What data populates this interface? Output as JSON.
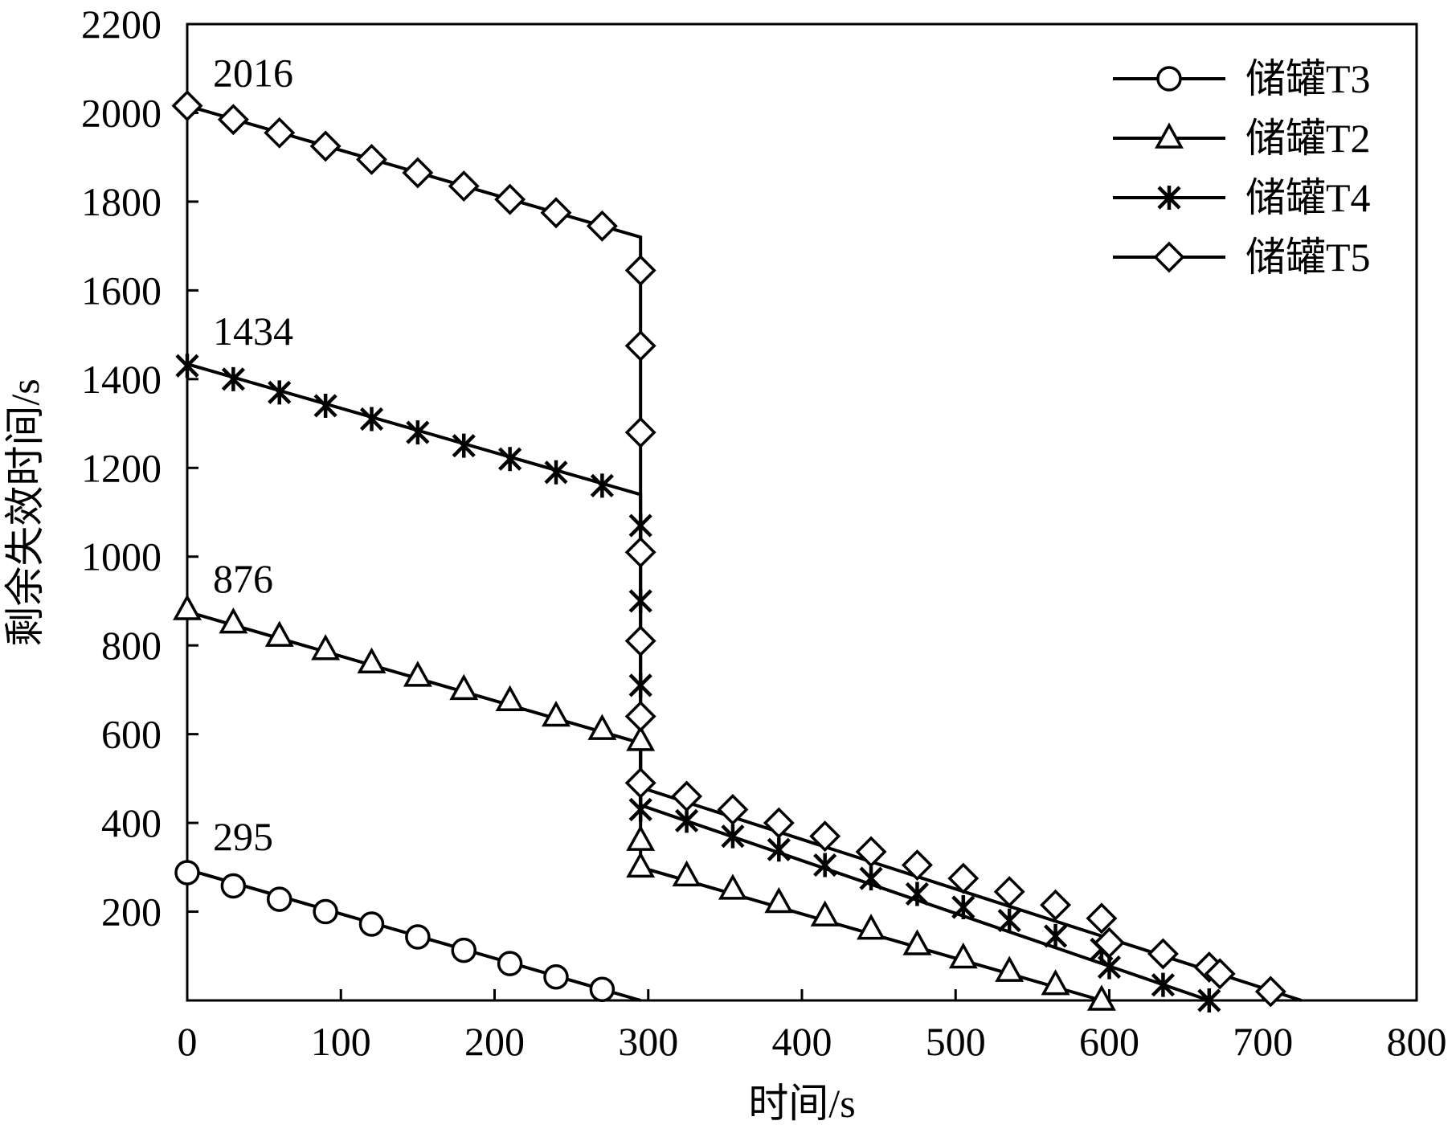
{
  "chart_data": {
    "type": "line",
    "title": "",
    "xlabel": "时间/s",
    "ylabel": "剩余失效时间/s",
    "xlim": [
      0,
      800
    ],
    "ylim": [
      0,
      2200
    ],
    "xticks": [
      0,
      100,
      200,
      300,
      400,
      500,
      600,
      700,
      800
    ],
    "yticks": [
      200,
      400,
      600,
      800,
      1000,
      1200,
      1400,
      1600,
      1800,
      2000,
      2200
    ],
    "grid": false,
    "legend_position": "top-right",
    "annotations": [
      {
        "text": "2016",
        "x": 0,
        "y": 2016
      },
      {
        "text": "1434",
        "x": 0,
        "y": 1434
      },
      {
        "text": "876",
        "x": 0,
        "y": 876
      },
      {
        "text": "295",
        "x": 0,
        "y": 295
      }
    ],
    "series": [
      {
        "name": "储罐T3",
        "marker": "circle",
        "line": [
          [
            0,
            295
          ],
          [
            295,
            0
          ]
        ],
        "points": [
          [
            0,
            288
          ],
          [
            30,
            258
          ],
          [
            60,
            228
          ],
          [
            90,
            200
          ],
          [
            120,
            172
          ],
          [
            150,
            143
          ],
          [
            180,
            113
          ],
          [
            210,
            83
          ],
          [
            240,
            53
          ],
          [
            270,
            25
          ]
        ]
      },
      {
        "name": "储罐T2",
        "marker": "triangle",
        "line": [
          [
            0,
            876
          ],
          [
            295,
            580
          ],
          [
            295,
            300
          ],
          [
            595,
            0
          ]
        ],
        "points": [
          [
            0,
            880
          ],
          [
            30,
            850
          ],
          [
            60,
            820
          ],
          [
            90,
            790
          ],
          [
            120,
            760
          ],
          [
            150,
            730
          ],
          [
            180,
            700
          ],
          [
            210,
            675
          ],
          [
            240,
            640
          ],
          [
            270,
            610
          ],
          [
            295,
            585
          ],
          [
            295,
            360
          ],
          [
            295,
            300
          ],
          [
            325,
            280
          ],
          [
            355,
            250
          ],
          [
            385,
            220
          ],
          [
            415,
            190
          ],
          [
            445,
            160
          ],
          [
            475,
            125
          ],
          [
            505,
            95
          ],
          [
            535,
            65
          ],
          [
            565,
            35
          ],
          [
            595,
            0
          ]
        ]
      },
      {
        "name": "储罐T4",
        "marker": "star",
        "line": [
          [
            0,
            1434
          ],
          [
            295,
            1140
          ],
          [
            295,
            440
          ],
          [
            665,
            0
          ]
        ],
        "points": [
          [
            0,
            1430
          ],
          [
            30,
            1400
          ],
          [
            60,
            1370
          ],
          [
            90,
            1340
          ],
          [
            120,
            1310
          ],
          [
            150,
            1280
          ],
          [
            180,
            1250
          ],
          [
            210,
            1220
          ],
          [
            240,
            1190
          ],
          [
            270,
            1160
          ],
          [
            295,
            1070
          ],
          [
            295,
            900
          ],
          [
            295,
            710
          ],
          [
            295,
            430
          ],
          [
            325,
            405
          ],
          [
            355,
            370
          ],
          [
            385,
            340
          ],
          [
            415,
            305
          ],
          [
            445,
            275
          ],
          [
            475,
            240
          ],
          [
            505,
            210
          ],
          [
            535,
            180
          ],
          [
            565,
            145
          ],
          [
            595,
            115
          ],
          [
            600,
            75
          ],
          [
            635,
            35
          ],
          [
            665,
            0
          ]
        ]
      },
      {
        "name": "储罐T5",
        "marker": "diamond",
        "line": [
          [
            0,
            2016
          ],
          [
            295,
            1720
          ],
          [
            295,
            480
          ],
          [
            725,
            0
          ]
        ],
        "points": [
          [
            0,
            2016
          ],
          [
            30,
            1985
          ],
          [
            60,
            1955
          ],
          [
            90,
            1925
          ],
          [
            120,
            1895
          ],
          [
            150,
            1865
          ],
          [
            180,
            1835
          ],
          [
            210,
            1805
          ],
          [
            240,
            1775
          ],
          [
            270,
            1745
          ],
          [
            295,
            1645
          ],
          [
            295,
            1475
          ],
          [
            295,
            1280
          ],
          [
            295,
            1010
          ],
          [
            295,
            810
          ],
          [
            295,
            640
          ],
          [
            295,
            490
          ],
          [
            325,
            460
          ],
          [
            355,
            430
          ],
          [
            385,
            400
          ],
          [
            415,
            370
          ],
          [
            445,
            335
          ],
          [
            475,
            305
          ],
          [
            505,
            275
          ],
          [
            535,
            245
          ],
          [
            565,
            215
          ],
          [
            595,
            185
          ],
          [
            600,
            130
          ],
          [
            635,
            105
          ],
          [
            665,
            75
          ],
          [
            672,
            60
          ],
          [
            705,
            20
          ]
        ]
      }
    ]
  }
}
